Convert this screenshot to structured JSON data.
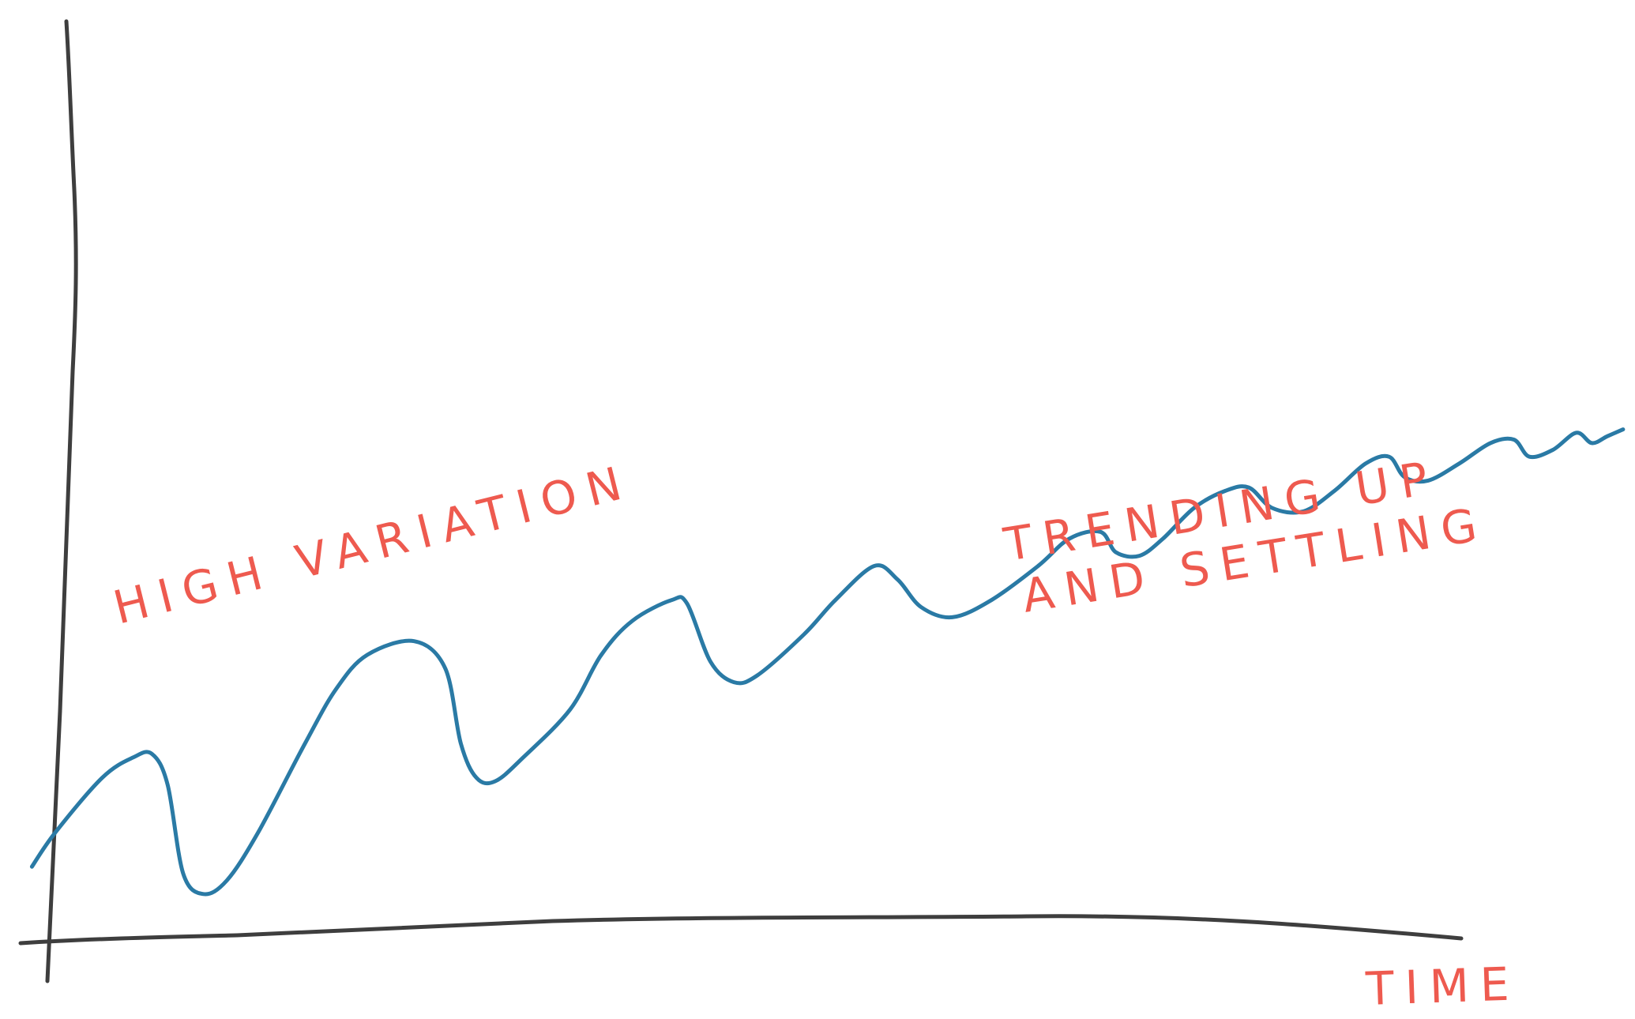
{
  "chart_data": {
    "type": "line",
    "style": "hand-drawn sketch",
    "xlabel": "TIME",
    "ylabel": "",
    "grid": false,
    "legend": "none",
    "x_range": [
      0,
      100
    ],
    "y_range": [
      0,
      100
    ],
    "series": [
      {
        "color": "#2a7aa5",
        "points": [
          [
            -1.5,
            9
          ],
          [
            0,
            14
          ],
          [
            3,
            22
          ],
          [
            5,
            25
          ],
          [
            6.2,
            25.5
          ],
          [
            7.2,
            21
          ],
          [
            8.2,
            8
          ],
          [
            9.5,
            5
          ],
          [
            11,
            7
          ],
          [
            13,
            14
          ],
          [
            16,
            27
          ],
          [
            18,
            35
          ],
          [
            20,
            40
          ],
          [
            23,
            42
          ],
          [
            25,
            38
          ],
          [
            26,
            27
          ],
          [
            27,
            22
          ],
          [
            28.2,
            21.5
          ],
          [
            30,
            25
          ],
          [
            33,
            32
          ],
          [
            35,
            40
          ],
          [
            37,
            45
          ],
          [
            39.5,
            48
          ],
          [
            40.5,
            47.5
          ],
          [
            42,
            39
          ],
          [
            43.5,
            36
          ],
          [
            45,
            37
          ],
          [
            48,
            43
          ],
          [
            50,
            48
          ],
          [
            52.5,
            53
          ],
          [
            54,
            51
          ],
          [
            55.5,
            47
          ],
          [
            57.5,
            45.5
          ],
          [
            60,
            48
          ],
          [
            63,
            53
          ],
          [
            65,
            57
          ],
          [
            67,
            58
          ],
          [
            68,
            55
          ],
          [
            69.5,
            54.5
          ],
          [
            71,
            57
          ],
          [
            73,
            61.5
          ],
          [
            75,
            64
          ],
          [
            76.5,
            64.5
          ],
          [
            78,
            61.5
          ],
          [
            80,
            61
          ],
          [
            82,
            64
          ],
          [
            84,
            68
          ],
          [
            85.5,
            69
          ],
          [
            86.5,
            66
          ],
          [
            88,
            65.5
          ],
          [
            90,
            68
          ],
          [
            92,
            71
          ],
          [
            93.5,
            71.5
          ],
          [
            94.5,
            69
          ],
          [
            96,
            70
          ],
          [
            97.5,
            72.5
          ],
          [
            98.5,
            71
          ],
          [
            99.5,
            72
          ],
          [
            100.5,
            73
          ]
        ]
      }
    ],
    "annotations": [
      "HIGH VARIATION",
      "TRENDING UP",
      "AND SETTLING"
    ],
    "colors": {
      "axis": "#3e3e3e",
      "annotation": "#ee5a4f"
    }
  }
}
